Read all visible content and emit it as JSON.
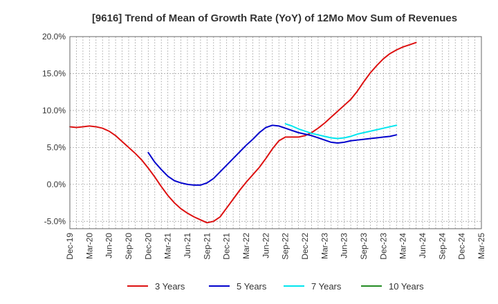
{
  "chart_data": {
    "type": "line",
    "title": "[9616]  Trend of Mean of Growth Rate (YoY) of 12Mo Mov Sum of Revenues",
    "xlabel": "",
    "ylabel": "",
    "ylim": [
      -6,
      20
    ],
    "y_ticks": [
      20,
      15,
      10,
      5,
      0,
      -5
    ],
    "y_tick_labels": [
      "20.0%",
      "15.0%",
      "10.0%",
      "5.0%",
      "0.0%",
      "-5.0%"
    ],
    "x_tick_labels": [
      "Dec-19",
      "Mar-20",
      "Jun-20",
      "Sep-20",
      "Dec-20",
      "Mar-21",
      "Jun-21",
      "Sep-21",
      "Dec-21",
      "Mar-22",
      "Jun-22",
      "Sep-22",
      "Dec-22",
      "Mar-23",
      "Jun-23",
      "Sep-23",
      "Dec-23",
      "Mar-24",
      "Jun-24",
      "Sep-24",
      "Dec-24",
      "Mar-25"
    ],
    "grid": true,
    "legend_position": "bottom",
    "series": [
      {
        "name": "3 Years",
        "color": "#dd1111",
        "start_index": 0,
        "values": [
          7.8,
          7.7,
          7.8,
          7.9,
          7.8,
          7.6,
          7.2,
          6.6,
          5.8,
          5.0,
          4.2,
          3.3,
          2.2,
          1.0,
          -0.3,
          -1.5,
          -2.5,
          -3.3,
          -3.9,
          -4.4,
          -4.8,
          -5.2,
          -5.0,
          -4.4,
          -3.2,
          -2.0,
          -0.8,
          0.3,
          1.3,
          2.3,
          3.5,
          4.8,
          5.9,
          6.4,
          6.4,
          6.4,
          6.6,
          7.0,
          7.6,
          8.3,
          9.1,
          9.9,
          10.7,
          11.5,
          12.6,
          13.9,
          15.1,
          16.1,
          17.0,
          17.7,
          18.2,
          18.6,
          18.9,
          19.2
        ]
      },
      {
        "name": "5 Years",
        "color": "#0000cc",
        "start_index": 12,
        "values": [
          4.3,
          3.0,
          2.0,
          1.1,
          0.5,
          0.2,
          0.0,
          -0.1,
          -0.1,
          0.2,
          0.8,
          1.7,
          2.6,
          3.5,
          4.4,
          5.3,
          6.1,
          7.0,
          7.7,
          8.0,
          7.9,
          7.6,
          7.3,
          7.0,
          6.8,
          6.6,
          6.3,
          6.0,
          5.7,
          5.6,
          5.7,
          5.9,
          6.0,
          6.1,
          6.2,
          6.3,
          6.4,
          6.5,
          6.7
        ]
      },
      {
        "name": "7 Years",
        "color": "#00e5ee",
        "start_index": 33,
        "values": [
          8.2,
          7.9,
          7.5,
          7.2,
          6.9,
          6.7,
          6.5,
          6.3,
          6.2,
          6.3,
          6.5,
          6.8,
          7.0,
          7.2,
          7.4,
          7.6,
          7.8,
          8.0
        ]
      },
      {
        "name": "10 Years",
        "color": "#228b22",
        "start_index": 0,
        "values": []
      }
    ]
  }
}
